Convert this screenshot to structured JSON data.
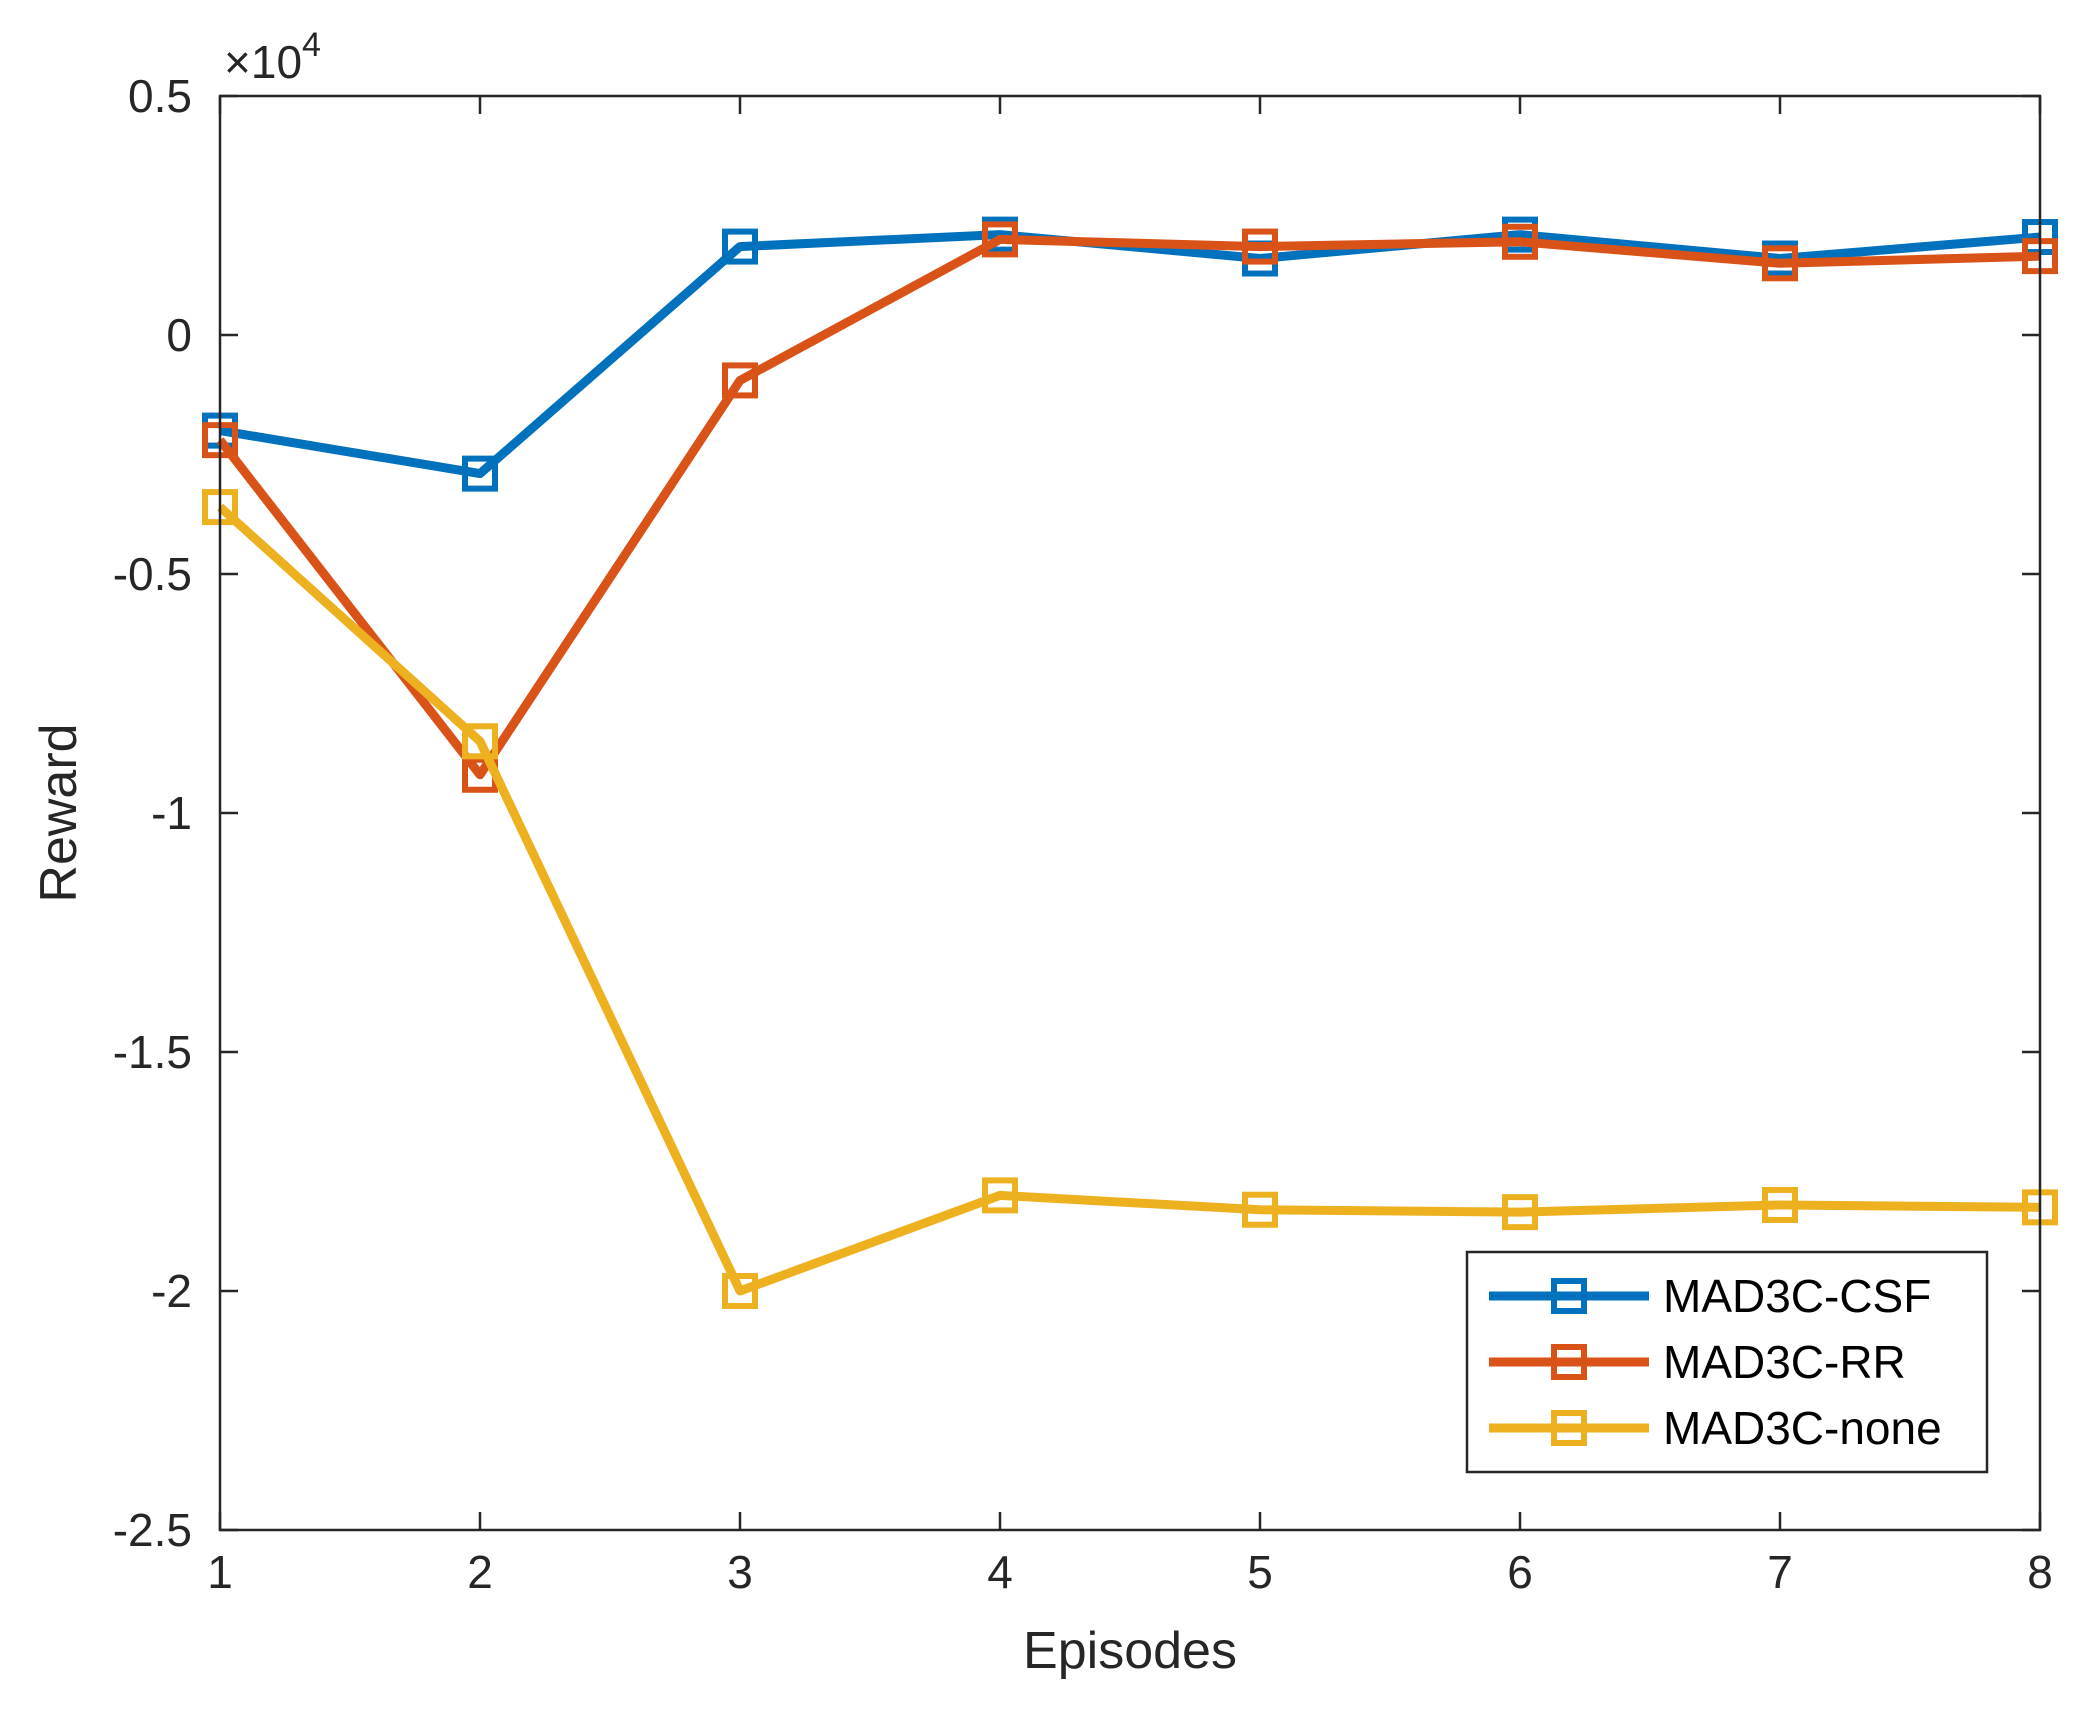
{
  "chart_data": {
    "type": "line",
    "title": "",
    "xlabel": "Episodes",
    "ylabel": "Reward",
    "x": [
      1,
      2,
      3,
      4,
      5,
      6,
      7,
      8
    ],
    "x_tick_labels": [
      "1",
      "2",
      "3",
      "4",
      "5",
      "6",
      "7",
      "8"
    ],
    "xlim": [
      1,
      8
    ],
    "ylim": [
      -2.5,
      0.5
    ],
    "y_ticks": [
      -2.5,
      -2,
      -1.5,
      -1,
      -0.5,
      0,
      0.5
    ],
    "y_tick_labels": [
      "-2.5",
      "-2",
      "-1.5",
      "-1",
      "-0.5",
      "0",
      "0.5"
    ],
    "y_multiplier": {
      "base": "×10",
      "exponent": "4"
    },
    "grid": false,
    "legend_position": "bottom-right",
    "marker": "square",
    "series": [
      {
        "name": "MAD3C-CSF",
        "color": "#0072BD",
        "values": [
          -0.2,
          -0.29,
          0.185,
          0.21,
          0.16,
          0.21,
          0.16,
          0.205
        ]
      },
      {
        "name": "MAD3C-RR",
        "color": "#D95319",
        "values": [
          -0.22,
          -0.92,
          -0.095,
          0.2,
          0.185,
          0.195,
          0.15,
          0.165
        ]
      },
      {
        "name": "MAD3C-none",
        "color": "#EDB120",
        "values": [
          -0.36,
          -0.85,
          -2.0,
          -1.8,
          -1.83,
          -1.835,
          -1.82,
          -1.825
        ]
      }
    ]
  }
}
